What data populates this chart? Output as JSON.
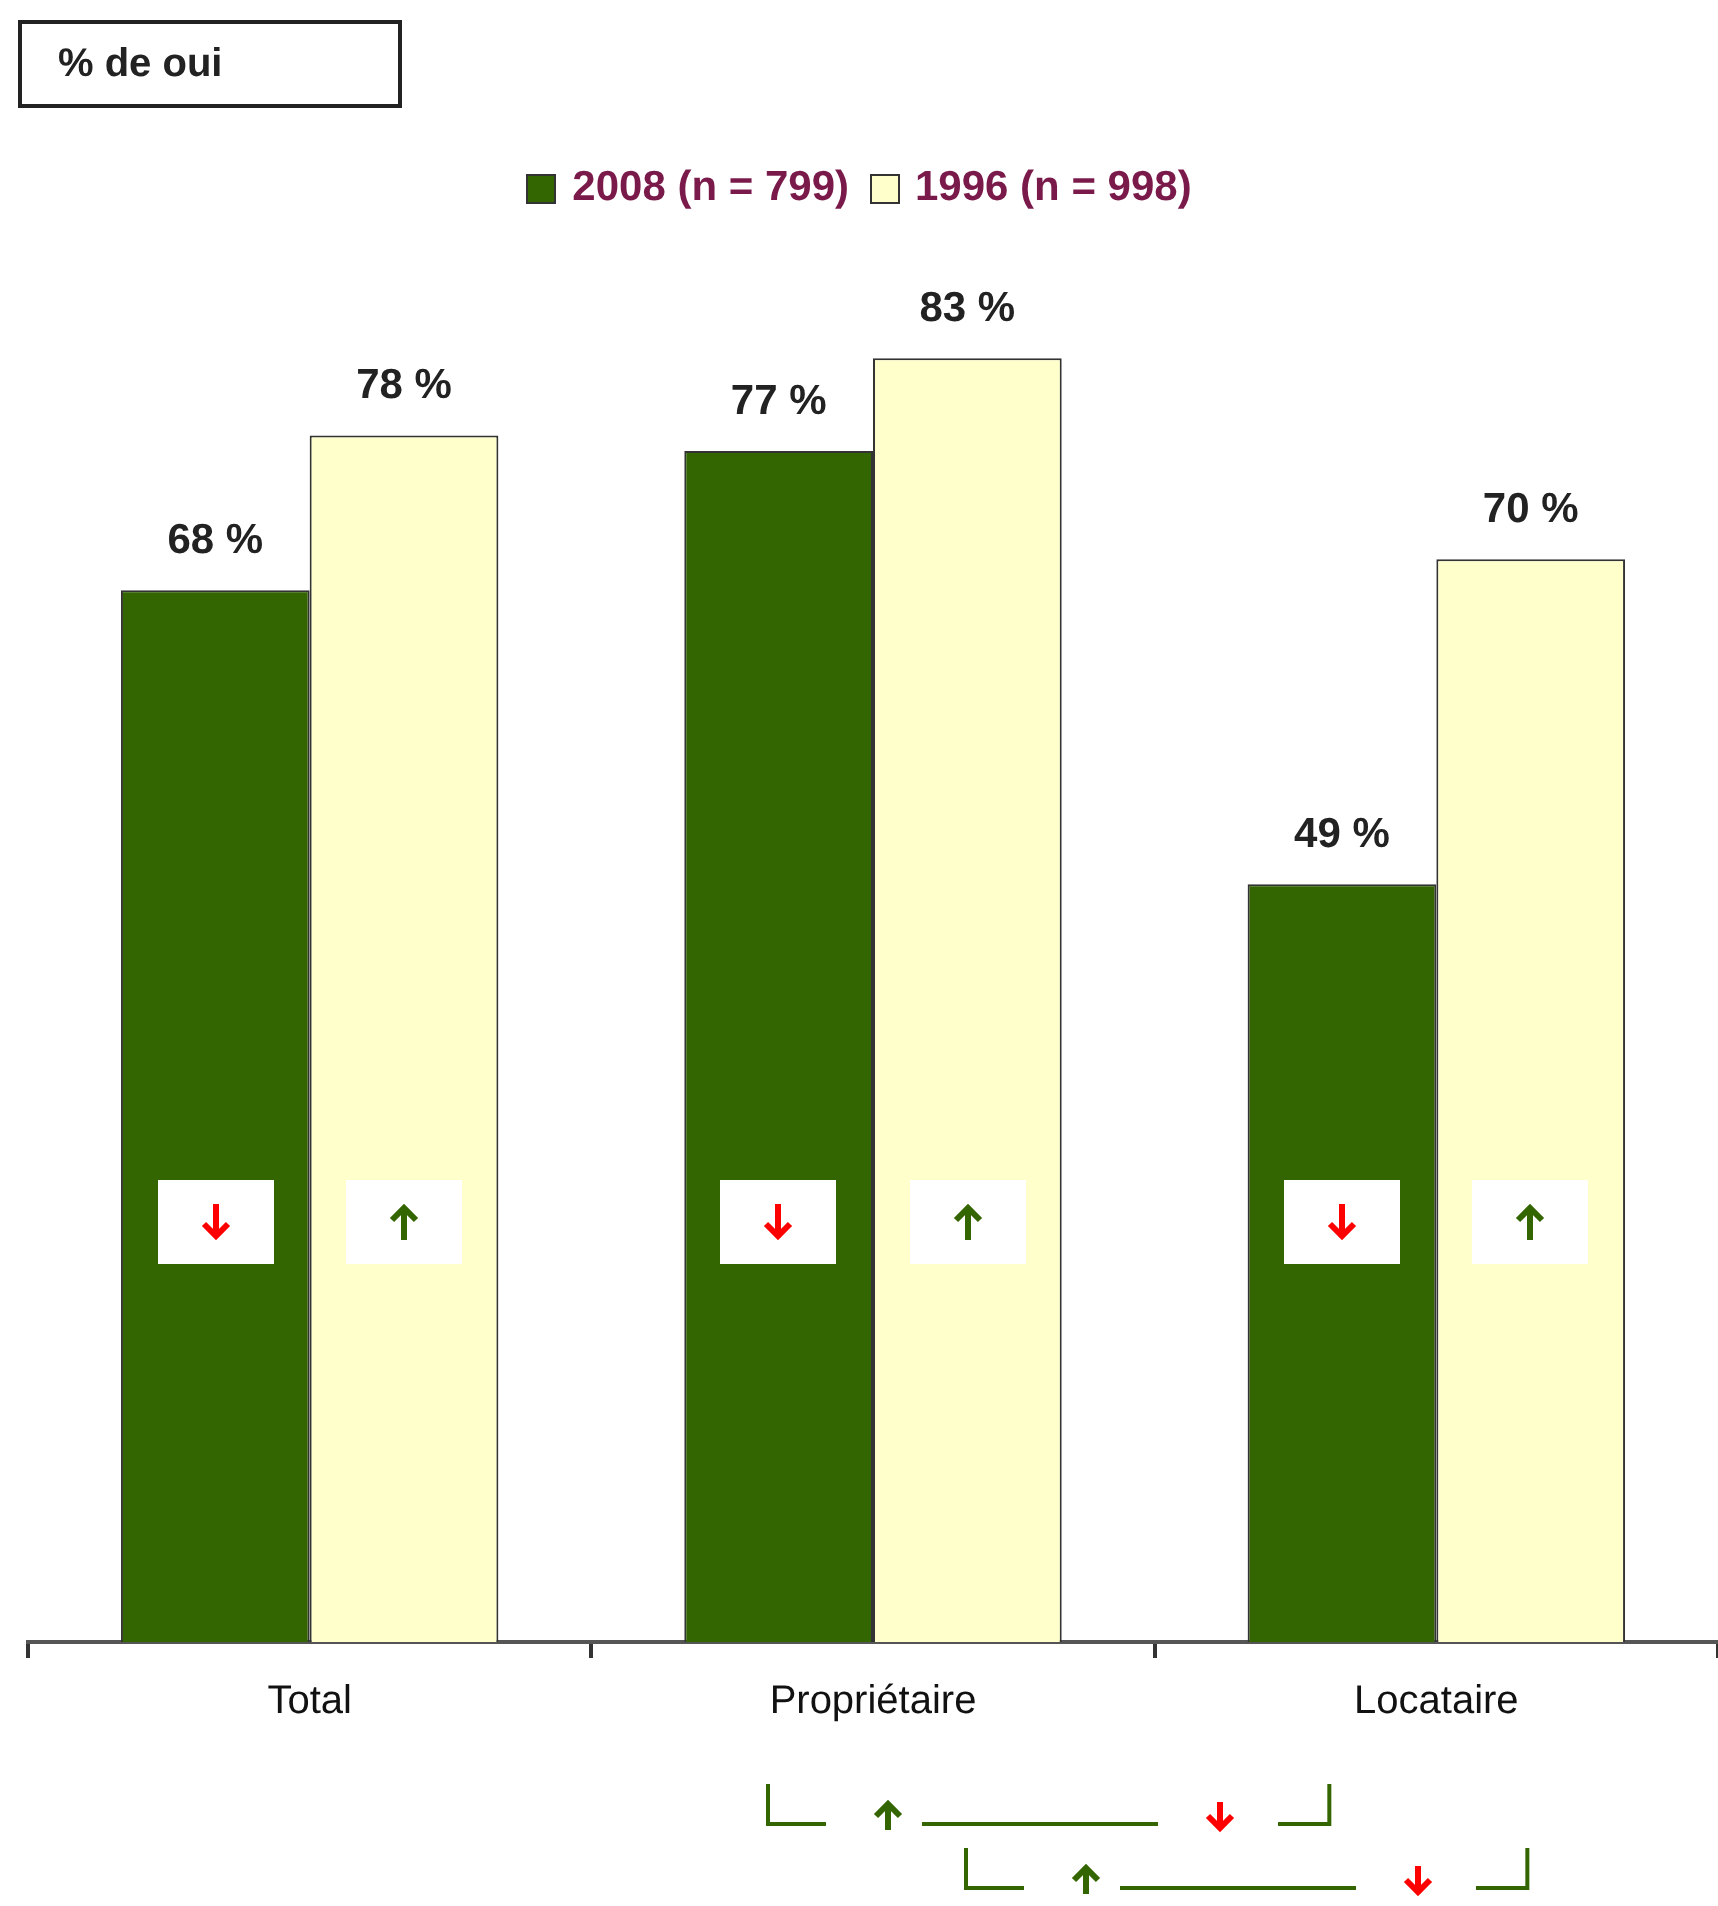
{
  "chart_data": {
    "type": "bar",
    "title": "% de oui",
    "categories": [
      "Total",
      "Propriétaire",
      "Locataire"
    ],
    "series": [
      {
        "name": "2008 (n = 799)",
        "color": "#336600",
        "values": [
          68,
          77,
          49
        ],
        "value_labels": [
          "68 %",
          "77 %",
          "49 %"
        ]
      },
      {
        "name": "1996 (n = 998)",
        "color": "#ffffcc",
        "values": [
          78,
          83,
          70
        ],
        "value_labels": [
          "78 %",
          "83 %",
          "70 %"
        ]
      }
    ],
    "legend": "top"
  }
}
